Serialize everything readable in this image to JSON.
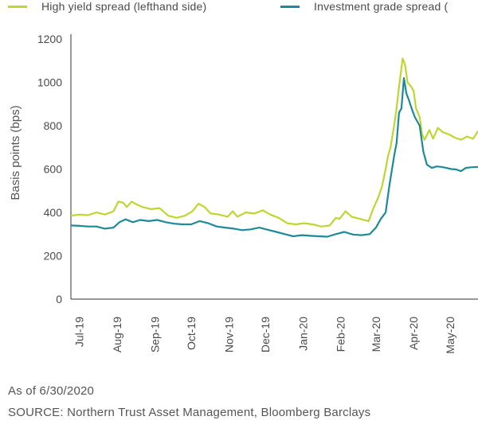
{
  "legend": [
    {
      "label": "High yield spread (lefthand side)",
      "color": "#bfd630"
    },
    {
      "label": "Investment grade spread (",
      "color": "#1c8a99"
    }
  ],
  "footnotes": {
    "as_of": "As of 6/30/2020",
    "source": "SOURCE: Northern Trust Asset Management, Bloomberg Barclays"
  },
  "chart_data": {
    "type": "line",
    "ylabel": "Basis points (bps)",
    "xlabel": "",
    "ylim": [
      0,
      1200
    ],
    "yticks": [
      0,
      200,
      400,
      600,
      800,
      1000,
      1200
    ],
    "xlim": [
      "2019-06-24",
      "2020-05-24"
    ],
    "xticks": [
      {
        "label": "Jul-19",
        "date": "2019-07-01"
      },
      {
        "label": "Aug-19",
        "date": "2019-08-01"
      },
      {
        "label": "Sep-19",
        "date": "2019-09-01"
      },
      {
        "label": "Oct-19",
        "date": "2019-10-01"
      },
      {
        "label": "Nov-19",
        "date": "2019-11-01"
      },
      {
        "label": "Dec-19",
        "date": "2019-12-01"
      },
      {
        "label": "Jan-20",
        "date": "2020-01-01"
      },
      {
        "label": "Feb-20",
        "date": "2020-02-01"
      },
      {
        "label": "Mar-20",
        "date": "2020-03-01"
      },
      {
        "label": "Apr-20",
        "date": "2020-04-01"
      },
      {
        "label": "May-20",
        "date": "2020-05-01"
      }
    ],
    "grid": false,
    "legend_position": "top",
    "series": [
      {
        "name": "High yield spread (lefthand side)",
        "color": "#bfd630",
        "points": [
          [
            "2019-06-24",
            385
          ],
          [
            "2019-07-01",
            390
          ],
          [
            "2019-07-08",
            387
          ],
          [
            "2019-07-15",
            400
          ],
          [
            "2019-07-22",
            390
          ],
          [
            "2019-07-29",
            405
          ],
          [
            "2019-08-02",
            450
          ],
          [
            "2019-08-06",
            445
          ],
          [
            "2019-08-09",
            425
          ],
          [
            "2019-08-13",
            450
          ],
          [
            "2019-08-16",
            440
          ],
          [
            "2019-08-22",
            425
          ],
          [
            "2019-08-29",
            415
          ],
          [
            "2019-09-05",
            420
          ],
          [
            "2019-09-12",
            385
          ],
          [
            "2019-09-19",
            375
          ],
          [
            "2019-09-26",
            385
          ],
          [
            "2019-10-02",
            405
          ],
          [
            "2019-10-07",
            440
          ],
          [
            "2019-10-12",
            425
          ],
          [
            "2019-10-17",
            395
          ],
          [
            "2019-10-24",
            390
          ],
          [
            "2019-10-31",
            380
          ],
          [
            "2019-11-04",
            405
          ],
          [
            "2019-11-08",
            380
          ],
          [
            "2019-11-15",
            400
          ],
          [
            "2019-11-22",
            395
          ],
          [
            "2019-11-29",
            410
          ],
          [
            "2019-12-05",
            390
          ],
          [
            "2019-12-12",
            375
          ],
          [
            "2019-12-19",
            350
          ],
          [
            "2019-12-26",
            345
          ],
          [
            "2020-01-02",
            350
          ],
          [
            "2020-01-09",
            345
          ],
          [
            "2020-01-16",
            335
          ],
          [
            "2020-01-23",
            340
          ],
          [
            "2020-01-28",
            375
          ],
          [
            "2020-01-31",
            370
          ],
          [
            "2020-02-05",
            405
          ],
          [
            "2020-02-10",
            380
          ],
          [
            "2020-02-17",
            370
          ],
          [
            "2020-02-24",
            360
          ],
          [
            "2020-02-28",
            420
          ],
          [
            "2020-03-03",
            470
          ],
          [
            "2020-03-06",
            520
          ],
          [
            "2020-03-09",
            600
          ],
          [
            "2020-03-11",
            660
          ],
          [
            "2020-03-13",
            700
          ],
          [
            "2020-03-16",
            800
          ],
          [
            "2020-03-18",
            880
          ],
          [
            "2020-03-20",
            980
          ],
          [
            "2020-03-23",
            1110
          ],
          [
            "2020-03-25",
            1080
          ],
          [
            "2020-03-27",
            1000
          ],
          [
            "2020-03-30",
            980
          ],
          [
            "2020-04-01",
            960
          ],
          [
            "2020-04-03",
            880
          ],
          [
            "2020-04-06",
            840
          ],
          [
            "2020-04-08",
            760
          ],
          [
            "2020-04-10",
            735
          ],
          [
            "2020-04-14",
            780
          ],
          [
            "2020-04-17",
            740
          ],
          [
            "2020-04-21",
            790
          ],
          [
            "2020-04-25",
            770
          ],
          [
            "2020-04-30",
            760
          ],
          [
            "2020-05-05",
            745
          ],
          [
            "2020-05-10",
            735
          ],
          [
            "2020-05-15",
            750
          ],
          [
            "2020-05-20",
            740
          ],
          [
            "2020-05-24",
            775
          ]
        ]
      },
      {
        "name": "Investment grade spread (",
        "color": "#1c8a99",
        "points": [
          [
            "2019-06-24",
            340
          ],
          [
            "2019-07-01",
            338
          ],
          [
            "2019-07-08",
            335
          ],
          [
            "2019-07-15",
            335
          ],
          [
            "2019-07-22",
            325
          ],
          [
            "2019-07-29",
            330
          ],
          [
            "2019-08-03",
            355
          ],
          [
            "2019-08-08",
            368
          ],
          [
            "2019-08-14",
            355
          ],
          [
            "2019-08-20",
            365
          ],
          [
            "2019-08-27",
            360
          ],
          [
            "2019-09-03",
            365
          ],
          [
            "2019-09-10",
            355
          ],
          [
            "2019-09-17",
            348
          ],
          [
            "2019-09-24",
            345
          ],
          [
            "2019-10-01",
            345
          ],
          [
            "2019-10-08",
            360
          ],
          [
            "2019-10-15",
            350
          ],
          [
            "2019-10-22",
            335
          ],
          [
            "2019-10-29",
            330
          ],
          [
            "2019-11-05",
            325
          ],
          [
            "2019-11-12",
            318
          ],
          [
            "2019-11-19",
            322
          ],
          [
            "2019-11-26",
            330
          ],
          [
            "2019-12-03",
            320
          ],
          [
            "2019-12-10",
            310
          ],
          [
            "2019-12-17",
            300
          ],
          [
            "2019-12-24",
            290
          ],
          [
            "2019-12-31",
            295
          ],
          [
            "2020-01-07",
            292
          ],
          [
            "2020-01-14",
            290
          ],
          [
            "2020-01-21",
            288
          ],
          [
            "2020-01-28",
            300
          ],
          [
            "2020-02-04",
            310
          ],
          [
            "2020-02-11",
            298
          ],
          [
            "2020-02-18",
            295
          ],
          [
            "2020-02-25",
            300
          ],
          [
            "2020-03-01",
            330
          ],
          [
            "2020-03-05",
            370
          ],
          [
            "2020-03-09",
            400
          ],
          [
            "2020-03-12",
            520
          ],
          [
            "2020-03-16",
            660
          ],
          [
            "2020-03-18",
            720
          ],
          [
            "2020-03-20",
            860
          ],
          [
            "2020-03-22",
            880
          ],
          [
            "2020-03-24",
            1020
          ],
          [
            "2020-03-26",
            950
          ],
          [
            "2020-03-28",
            920
          ],
          [
            "2020-03-31",
            870
          ],
          [
            "2020-04-02",
            840
          ],
          [
            "2020-04-06",
            800
          ],
          [
            "2020-04-09",
            680
          ],
          [
            "2020-04-12",
            620
          ],
          [
            "2020-04-16",
            605
          ],
          [
            "2020-04-20",
            612
          ],
          [
            "2020-04-24",
            610
          ],
          [
            "2020-04-28",
            605
          ],
          [
            "2020-05-02",
            600
          ],
          [
            "2020-05-06",
            598
          ],
          [
            "2020-05-10",
            590
          ],
          [
            "2020-05-14",
            605
          ],
          [
            "2020-05-18",
            608
          ],
          [
            "2020-05-24",
            610
          ]
        ]
      }
    ]
  }
}
